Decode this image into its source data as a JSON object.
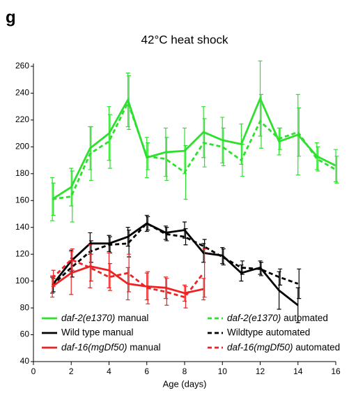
{
  "chart_data": {
    "type": "line",
    "panel_label": "g",
    "title": "42°C heat shock",
    "x_label": "Age (days)",
    "xlim": [
      0,
      16
    ],
    "xticks": [
      0,
      2,
      4,
      6,
      8,
      10,
      12,
      14,
      16
    ],
    "ylim": [
      40,
      260
    ],
    "yticks": [
      40,
      60,
      80,
      100,
      120,
      140,
      160,
      180,
      200,
      220,
      240,
      260
    ],
    "series": [
      {
        "name": "daf-2(e1370) manual",
        "color": "#2ee02e",
        "dash": false,
        "x": [
          1,
          2,
          3,
          4,
          5,
          6,
          7,
          8,
          9,
          10,
          11,
          12,
          13,
          14,
          15,
          16
        ],
        "values": [
          161,
          170,
          199,
          210,
          235,
          192,
          196,
          197,
          211,
          205,
          202,
          236,
          204,
          209,
          193,
          186
        ],
        "errors": [
          16,
          14,
          16,
          20,
          20,
          15,
          18,
          17,
          19,
          17,
          15,
          28,
          10,
          30,
          10,
          12
        ]
      },
      {
        "name": "daf-2(e1370) automated",
        "color": "#2ee02e",
        "dash": true,
        "x": [
          1,
          2,
          3,
          4,
          5,
          6,
          7,
          8,
          9,
          10,
          11,
          12,
          13,
          14,
          15,
          16
        ],
        "values": [
          161,
          163,
          195,
          204,
          233,
          193,
          191,
          181,
          203,
          200,
          190,
          219,
          206,
          211,
          191,
          183
        ],
        "errors": [
          12,
          19,
          20,
          20,
          20,
          10,
          16,
          20,
          18,
          14,
          12,
          20,
          8,
          18,
          9,
          10
        ]
      },
      {
        "name": "Wild type manual",
        "color": "#000000",
        "dash": false,
        "x": [
          1,
          2,
          3,
          4,
          5,
          6,
          7,
          8,
          9,
          10,
          11,
          12,
          13,
          14
        ],
        "values": [
          97,
          115,
          128,
          128,
          133,
          143,
          136,
          138,
          121,
          119,
          106,
          110,
          93,
          82
        ],
        "errors": [
          6,
          8,
          8,
          6,
          7,
          6,
          5,
          6,
          7,
          6,
          6,
          5,
          14,
          13
        ]
      },
      {
        "name": "Wildtype automated",
        "color": "#000000",
        "dash": true,
        "x": [
          1,
          2,
          3,
          4,
          5,
          6,
          7,
          8,
          9,
          10,
          11,
          12,
          13,
          14
        ],
        "values": [
          97,
          110,
          122,
          127,
          128,
          143,
          135,
          133,
          126,
          118,
          110,
          109,
          103,
          98
        ],
        "errors": [
          5,
          7,
          8,
          6,
          10,
          5,
          5,
          6,
          5,
          6,
          5,
          5,
          6,
          11
        ]
      },
      {
        "name": "daf-16(mgDf50) manual",
        "color": "#ee2222",
        "dash": false,
        "x": [
          1,
          2,
          3,
          4,
          5,
          6,
          7,
          8,
          9
        ],
        "values": [
          96,
          106,
          111,
          108,
          98,
          96,
          95,
          91,
          94
        ],
        "errors": [
          8,
          16,
          16,
          13,
          12,
          10,
          8,
          6,
          8
        ]
      },
      {
        "name": "daf-16(mgDf50) automated",
        "color": "#ee2222",
        "dash": true,
        "x": [
          1,
          2,
          3,
          4,
          5,
          6,
          7,
          8,
          9
        ],
        "values": [
          102,
          116,
          110,
          103,
          106,
          95,
          92,
          88,
          106
        ],
        "errors": [
          6,
          8,
          10,
          10,
          14,
          12,
          10,
          8,
          18
        ]
      }
    ]
  }
}
